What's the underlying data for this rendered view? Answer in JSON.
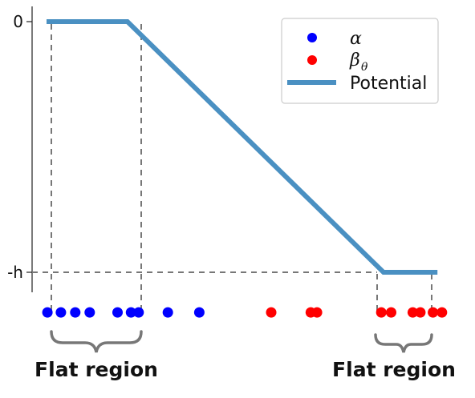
{
  "chart_data": {
    "type": "line",
    "title": "",
    "xlabel": "",
    "ylabel": "",
    "xlim": [
      0,
      10
    ],
    "ylim": [
      -1.08,
      0.05
    ],
    "yticks": [
      {
        "value": 0,
        "label": "0"
      },
      {
        "value": -1,
        "label": "-h"
      }
    ],
    "legend_position": "top-right",
    "series": [
      {
        "name": "Potential",
        "kind": "line",
        "color": "#4a90c2",
        "x": [
          0.5,
          2.3,
          8.0,
          9.2
        ],
        "y": [
          0,
          0,
          -1,
          -1
        ]
      },
      {
        "name": "α",
        "kind": "scatter",
        "color": "#0000ff",
        "x": [
          0.52,
          0.82,
          1.14,
          1.46,
          2.08,
          2.38,
          2.55,
          3.2,
          3.9
        ],
        "y": [
          -1.16,
          -1.16,
          -1.16,
          -1.16,
          -1.16,
          -1.16,
          -1.16,
          -1.16,
          -1.16
        ]
      },
      {
        "name": "β",
        "name_subscript": "θ",
        "kind": "scatter",
        "color": "#ff0000",
        "x": [
          5.5,
          6.38,
          6.52,
          7.95,
          8.17,
          8.65,
          8.82,
          9.1,
          9.3
        ],
        "y": [
          -1.16,
          -1.16,
          -1.16,
          -1.16,
          -1.16,
          -1.16,
          -1.16,
          -1.16,
          -1.16
        ]
      }
    ],
    "flat_regions": [
      {
        "label": "Flat region",
        "x": [
          0.5,
          2.3
        ]
      },
      {
        "label": "Flat region",
        "x": [
          8.0,
          9.2
        ]
      }
    ]
  }
}
